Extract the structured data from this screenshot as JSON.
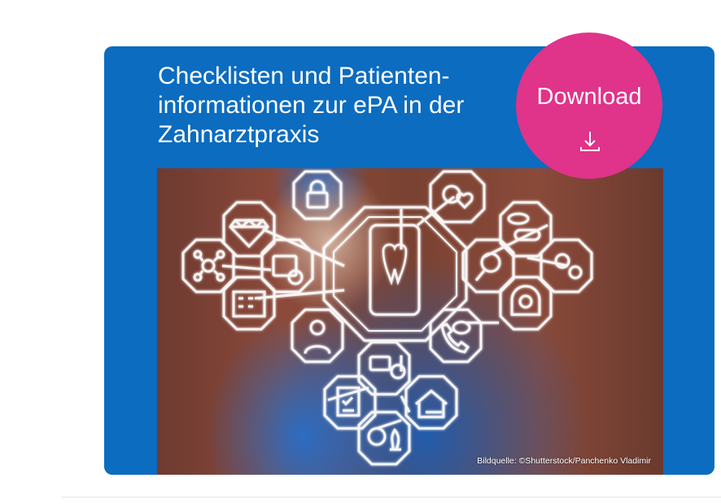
{
  "card": {
    "title": "Checklisten und Patienten-\ninformationen zur ePA in der\nZahnarztpraxis",
    "download_label": "Download",
    "image_credit": "Bildquelle: ©Shutterstock/Panchenko Vladimir"
  },
  "colors": {
    "card_background": "#0b6cc0",
    "download_button": "#e0338a",
    "text": "#ffffff"
  },
  "icons": {
    "download": "download-icon",
    "photo_overlay": [
      "lock-icon",
      "apple-heart-icon",
      "diamond-icon",
      "pills-icon",
      "network-icon",
      "calendar-clock-icon",
      "tooth-smartphone-icon",
      "magnifier-icon",
      "gears-icon",
      "hospital-icon",
      "mri-icon",
      "doctor-icon",
      "phone-chat-icon",
      "payment-icon",
      "checklist-icon",
      "family-home-icon",
      "brain-chess-icon"
    ]
  }
}
